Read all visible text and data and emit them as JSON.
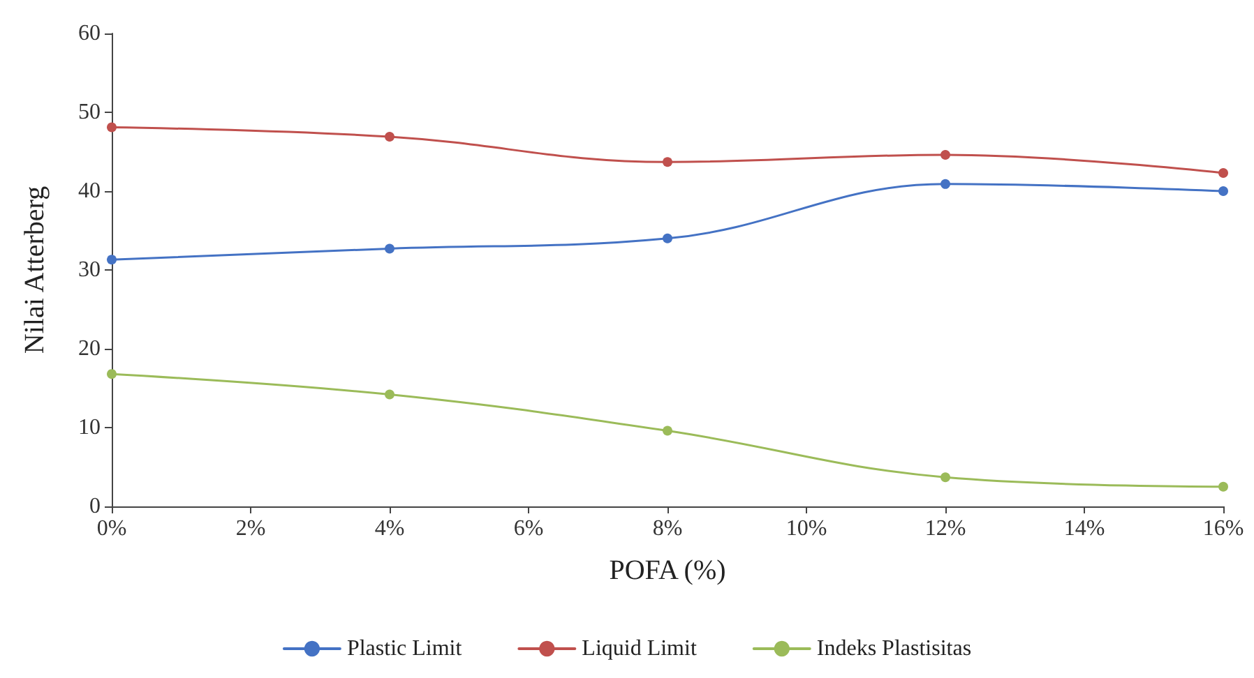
{
  "chart_data": {
    "type": "line",
    "xlabel": "POFA (%)",
    "ylabel": "Nilai Atterberg",
    "x": [
      0,
      4,
      8,
      12,
      16
    ],
    "series": [
      {
        "name": "Plastic Limit",
        "color": "#4472c4",
        "values": [
          31.3,
          32.7,
          34.0,
          40.9,
          40.0
        ]
      },
      {
        "name": "Liquid Limit",
        "color": "#c0504d",
        "values": [
          48.1,
          46.9,
          43.7,
          44.6,
          42.3
        ]
      },
      {
        "name": "Indeks Plastisitas",
        "color": "#9bbb59",
        "values": [
          16.8,
          14.2,
          9.6,
          3.7,
          2.5
        ]
      }
    ],
    "xlim": [
      0,
      16
    ],
    "xticks": [
      {
        "value": 0,
        "label": "0%"
      },
      {
        "value": 2,
        "label": "2%"
      },
      {
        "value": 4,
        "label": "4%"
      },
      {
        "value": 6,
        "label": "6%"
      },
      {
        "value": 8,
        "label": "8%"
      },
      {
        "value": 10,
        "label": "10%"
      },
      {
        "value": 12,
        "label": "12%"
      },
      {
        "value": 14,
        "label": "14%"
      },
      {
        "value": 16,
        "label": "16%"
      }
    ],
    "ylim": [
      0,
      60
    ],
    "yticks": [
      0,
      10,
      20,
      30,
      40,
      50,
      60
    ],
    "grid": false,
    "legend": "bottom",
    "marker": "circle",
    "line_style": "solid"
  }
}
